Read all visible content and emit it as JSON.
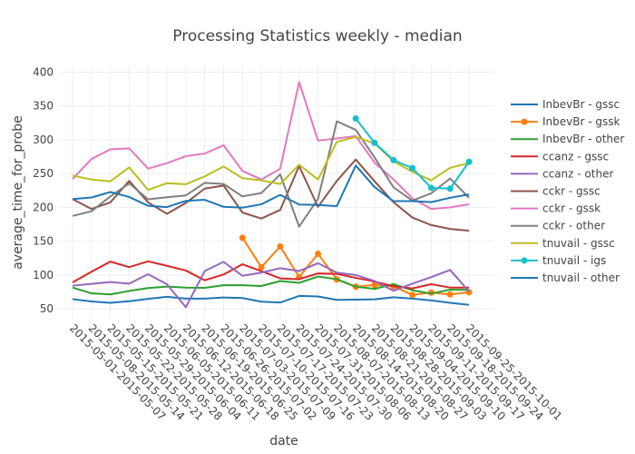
{
  "chart_data": {
    "type": "line",
    "title": "Processing Statistics weekly - median",
    "xlabel": "date",
    "ylabel": "average_time_for_probe",
    "ylim": [
      34,
      410
    ],
    "yticks": [
      50,
      100,
      150,
      200,
      250,
      300,
      350,
      400
    ],
    "grid": true,
    "legend_position": "right",
    "categories": [
      "2015-05-01-2015-05-07",
      "2015-05-08-2015-05-14",
      "2015-05-15-2015-05-21",
      "2015-05-22-2015-05-28",
      "2015-05-29-2015-06-04",
      "2015-06-05-2015-06-11",
      "2015-06-12-2015-06-18",
      "2015-06-19-2015-06-25",
      "2015-06-26-2015-07-02",
      "2015-07-03-2015-07-09",
      "2015-07-10-2015-07-16",
      "2015-07-17-2015-07-23",
      "2015-07-24-2015-07-30",
      "2015-07-31-2015-08-06",
      "2015-08-07-2015-08-13",
      "2015-08-14-2015-08-20",
      "2015-08-21-2015-08-27",
      "2015-08-28-2015-09-03",
      "2015-09-04-2015-09-10",
      "2015-09-11-2015-09-17",
      "2015-09-18-2015-09-24",
      "2015-09-25-2015-10-01"
    ],
    "series": [
      {
        "name": "InbevBr - gssc",
        "color": "#1f77b4",
        "markers": false,
        "values": [
          64.3,
          60.9,
          58.9,
          61.2,
          64.7,
          67.8,
          65.1,
          65.1,
          66.7,
          65.9,
          60.5,
          59.3,
          69,
          68.2,
          63.2,
          63.6,
          64,
          67.1,
          65.1,
          62.4,
          58.9,
          55.8
        ]
      },
      {
        "name": "InbevBr - gssk",
        "color": "#ff7f0e",
        "markers": true,
        "values": [
          null,
          null,
          null,
          null,
          null,
          null,
          null,
          null,
          null,
          155,
          111.6,
          142.2,
          96.9,
          131.4,
          93.4,
          82.6,
          85.3,
          83.3,
          70.5,
          74,
          71.3,
          74.4
        ]
      },
      {
        "name": "InbevBr - other",
        "color": "#2ca02c",
        "markers": false,
        "values": [
          81.4,
          72.9,
          71.3,
          76.4,
          80.6,
          82.9,
          81.4,
          81,
          84.9,
          84.9,
          83.7,
          91.1,
          88.4,
          97.7,
          93.8,
          82.6,
          79.5,
          86.4,
          77.5,
          72.5,
          78.3,
          77.9
        ]
      },
      {
        "name": "ccanz - gssc",
        "color": "#d62728",
        "markers": false,
        "values": [
          89.1,
          104.8,
          119.8,
          111.6,
          120.2,
          113.6,
          106.6,
          92.2,
          100.7,
          115.9,
          105.8,
          95,
          93.8,
          102.3,
          101.6,
          95.7,
          90.3,
          83.3,
          80.2,
          86.4,
          81.4,
          81.4
        ]
      },
      {
        "name": "ccanz - other",
        "color": "#9467bd",
        "markers": false,
        "values": [
          84.1,
          86.8,
          89.5,
          87.2,
          101.2,
          86.4,
          52.3,
          105.8,
          119.4,
          98.8,
          103.5,
          110.1,
          105.8,
          117.4,
          103.5,
          100,
          91.1,
          76.7,
          87.2,
          96.9,
          107.4,
          75.6
        ]
      },
      {
        "name": "cckr - gssc",
        "color": "#8c564b",
        "markers": false,
        "values": [
          212.3,
          197.7,
          207.3,
          239.2,
          207.3,
          190.4,
          206.5,
          227.7,
          232.3,
          192.3,
          183.5,
          196.2,
          261.2,
          200.8,
          239.2,
          270.8,
          238.5,
          207.7,
          185,
          173.8,
          168.1,
          165.4
        ]
      },
      {
        "name": "cckr - gssk",
        "color": "#e377c2",
        "markers": false,
        "values": [
          241.9,
          271.5,
          285.8,
          287.3,
          257.3,
          265.4,
          275.8,
          279.6,
          291.9,
          253.8,
          241.2,
          257.3,
          385.4,
          298.8,
          301.9,
          305.4,
          266.2,
          241.2,
          213.5,
          197.7,
          200,
          204.6
        ]
      },
      {
        "name": "cckr - other",
        "color": "#7f7f7f",
        "markers": false,
        "values": [
          187.3,
          194.2,
          216.2,
          235.4,
          211.9,
          215,
          217.7,
          236.2,
          234.6,
          216.2,
          221.2,
          248.8,
          171.5,
          212.3,
          327.3,
          314.6,
          273.8,
          229.6,
          210,
          220.8,
          242.7,
          214.2
        ]
      },
      {
        "name": "tnuvail - gssc",
        "color": "#bcbd22",
        "markers": false,
        "values": [
          246.9,
          241.2,
          238.5,
          259.2,
          225.8,
          235.8,
          234.2,
          245.8,
          260.4,
          243.1,
          240,
          234.6,
          263.1,
          241.2,
          296.9,
          304.2,
          294.6,
          268.1,
          252.7,
          240,
          258.5,
          265.4
        ]
      },
      {
        "name": "tnuvail - igs",
        "color": "#17becf",
        "markers": true,
        "values": [
          null,
          null,
          null,
          null,
          null,
          null,
          null,
          null,
          null,
          null,
          null,
          null,
          null,
          null,
          null,
          331.5,
          295.4,
          270,
          258.1,
          228.8,
          227.7,
          267.3
        ]
      },
      {
        "name": "tnuvail - other",
        "color": "#1f77b4",
        "markers": false,
        "values": [
          212.3,
          214.6,
          222.7,
          215.4,
          202.3,
          200.4,
          209.6,
          211.2,
          200.8,
          199.6,
          204.6,
          218.5,
          204.2,
          203.5,
          201.9,
          261.9,
          230,
          209.2,
          209.2,
          207.7,
          214.2,
          219.2
        ]
      }
    ]
  }
}
